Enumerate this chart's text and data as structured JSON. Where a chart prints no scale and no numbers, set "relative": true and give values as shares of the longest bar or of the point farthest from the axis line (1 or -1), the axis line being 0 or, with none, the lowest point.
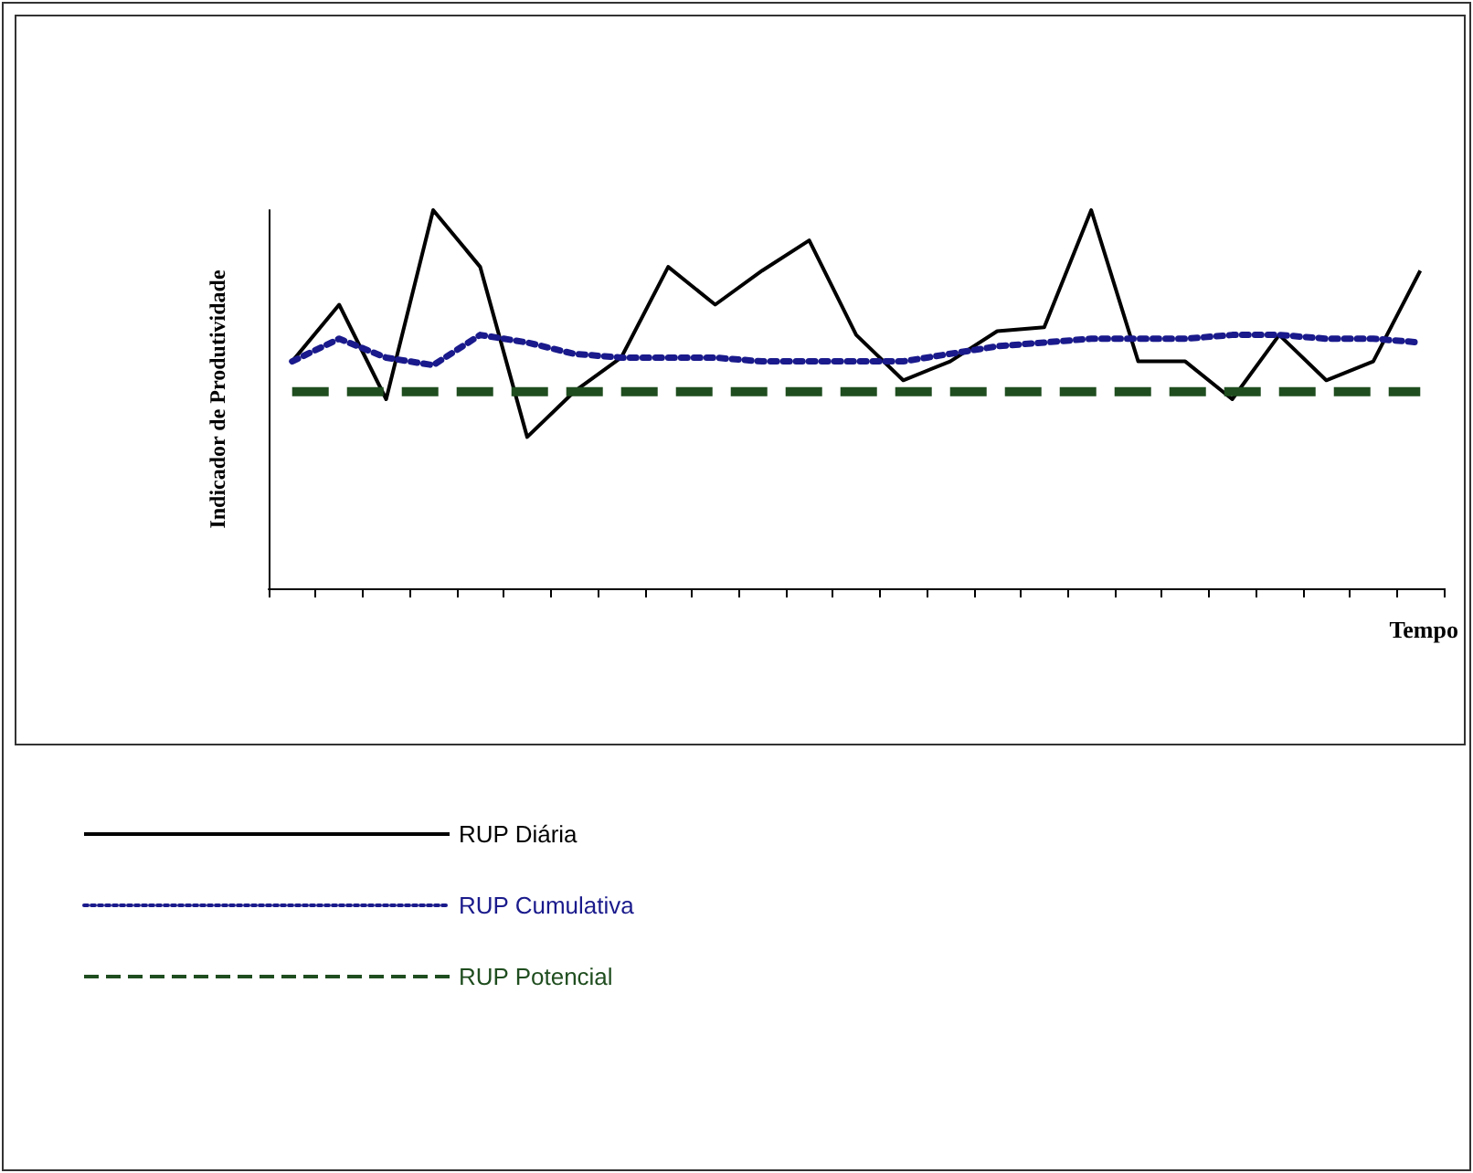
{
  "chart_data": {
    "type": "line",
    "relative": true,
    "xlabel": "Tempo",
    "ylabel": "Indicador de Produtividade",
    "categories": [
      null,
      null,
      null,
      null,
      null,
      null,
      null,
      null,
      null,
      null,
      null,
      null,
      null,
      null,
      null,
      null,
      null,
      null,
      null,
      null,
      null,
      null,
      null,
      null,
      null
    ],
    "series": [
      {
        "name": "RUP Diária",
        "color": "#000000",
        "line_style": "solid",
        "values": [
          0.6,
          0.75,
          0.5,
          1.0,
          0.85,
          0.4,
          0.52,
          0.61,
          0.85,
          0.75,
          0.84,
          0.92,
          0.67,
          0.55,
          0.6,
          0.68,
          0.69,
          1.0,
          0.6,
          0.6,
          0.5,
          0.67,
          0.55,
          0.6,
          0.84
        ]
      },
      {
        "name": "RUP Cumulativa",
        "color": "#1a1a8c",
        "line_style": "dotted",
        "values": [
          0.6,
          0.66,
          0.61,
          0.59,
          0.67,
          0.65,
          0.62,
          0.61,
          0.61,
          0.61,
          0.6,
          0.6,
          0.6,
          0.6,
          0.62,
          0.64,
          0.65,
          0.66,
          0.66,
          0.66,
          0.67,
          0.67,
          0.66,
          0.66,
          0.65
        ]
      },
      {
        "name": "RUP Potencial",
        "color": "#1f4d1f",
        "line_style": "dashed",
        "values": [
          0.52,
          0.52,
          0.52,
          0.52,
          0.52,
          0.52,
          0.52,
          0.52,
          0.52,
          0.52,
          0.52,
          0.52,
          0.52,
          0.52,
          0.52,
          0.52,
          0.52,
          0.52,
          0.52,
          0.52,
          0.52,
          0.52,
          0.52,
          0.52,
          0.52
        ]
      }
    ],
    "grid": false,
    "marker": "none",
    "legend": "bottom left"
  }
}
